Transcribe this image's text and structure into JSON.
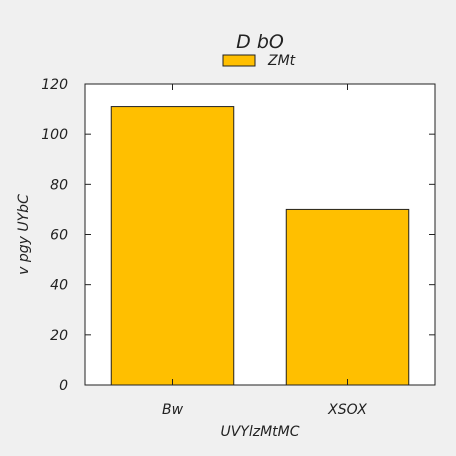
{
  "chart_data": {
    "type": "bar",
    "title": "D  bO",
    "xlabel": "UVYlzMtMC",
    "ylabel": "v   pgy  UYbC",
    "categories": [
      "Bw",
      "XSOX"
    ],
    "series": [
      {
        "name": "ZMt",
        "values": [
          111,
          70
        ],
        "color": "#ffbf00"
      }
    ],
    "ylim": [
      0,
      120
    ],
    "yticks": [
      0,
      20,
      40,
      60,
      80,
      100,
      120
    ],
    "grid": false,
    "legend_position": "top-center",
    "colors": {
      "background": "#f0f0f0",
      "plot_background": "#ffffff",
      "bar_fill": "#ffbf00",
      "bar_stroke": "#222222",
      "axis": "#222222"
    }
  }
}
